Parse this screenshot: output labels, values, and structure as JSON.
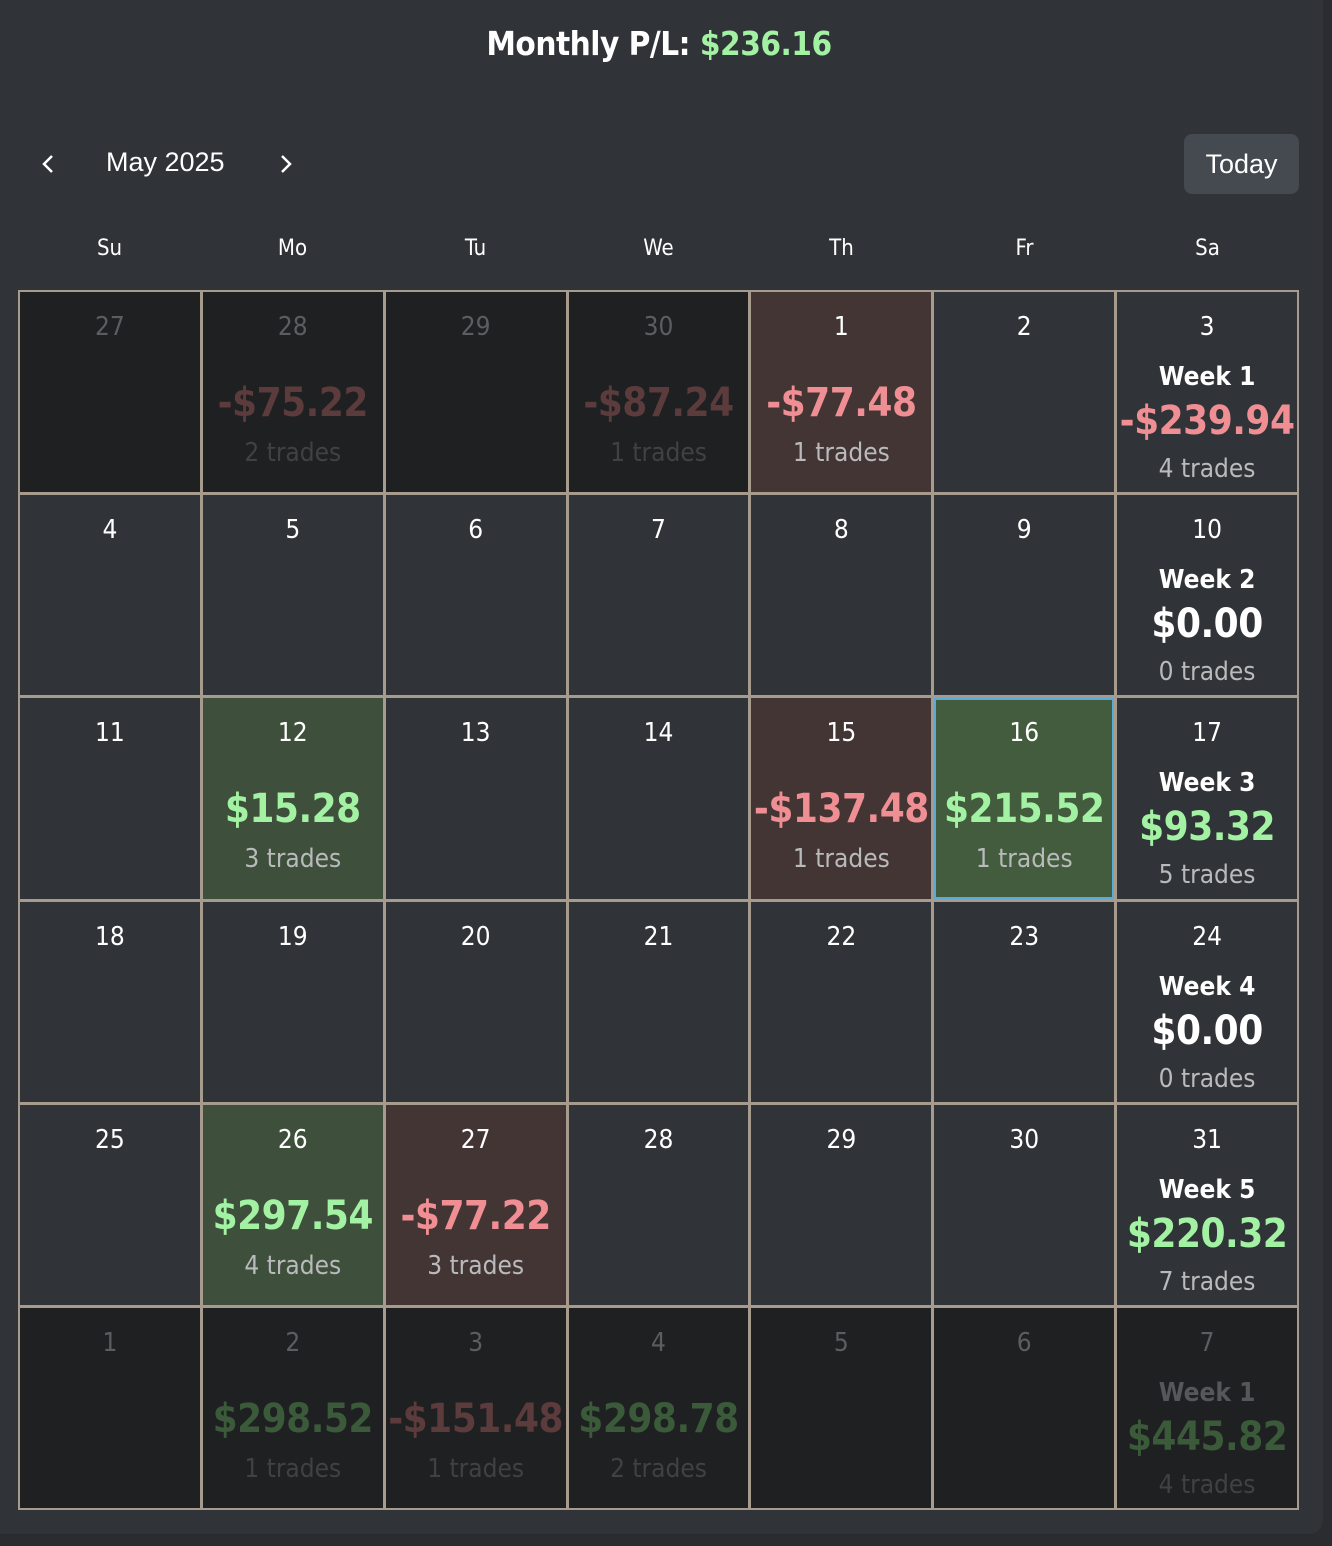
{
  "header": {
    "title_prefix": "Monthly P/L: ",
    "title_value": "$236.16"
  },
  "nav": {
    "month_label": "May 2025",
    "today_label": "Today"
  },
  "weekdays": [
    "Su",
    "Mo",
    "Tu",
    "We",
    "Th",
    "Fr",
    "Sa"
  ],
  "colors": {
    "gain": "#a3f2a3",
    "loss": "#f08f93",
    "selected_border": "#5aa9d6"
  },
  "weeks": [
    [
      {
        "day": "27",
        "out": true,
        "amount": "",
        "trades": ""
      },
      {
        "day": "28",
        "out": true,
        "amount": "-$75.22",
        "trades": "2 trades"
      },
      {
        "day": "29",
        "out": true,
        "amount": "",
        "trades": ""
      },
      {
        "day": "30",
        "out": true,
        "amount": "-$87.24",
        "trades": "1 trades"
      },
      {
        "day": "1",
        "out": false,
        "amount": "-$77.48",
        "trades": "1 trades"
      },
      {
        "day": "2",
        "out": false,
        "amount": "",
        "trades": ""
      },
      {
        "day": "3",
        "out": false,
        "week": "Week 1",
        "amount": "-$239.94",
        "trades": "4 trades"
      }
    ],
    [
      {
        "day": "4",
        "out": false,
        "amount": "",
        "trades": ""
      },
      {
        "day": "5",
        "out": false,
        "amount": "",
        "trades": ""
      },
      {
        "day": "6",
        "out": false,
        "amount": "",
        "trades": ""
      },
      {
        "day": "7",
        "out": false,
        "amount": "",
        "trades": ""
      },
      {
        "day": "8",
        "out": false,
        "amount": "",
        "trades": ""
      },
      {
        "day": "9",
        "out": false,
        "amount": "",
        "trades": ""
      },
      {
        "day": "10",
        "out": false,
        "week": "Week 2",
        "amount": "$0.00",
        "trades": "0 trades"
      }
    ],
    [
      {
        "day": "11",
        "out": false,
        "amount": "",
        "trades": ""
      },
      {
        "day": "12",
        "out": false,
        "amount": "$15.28",
        "trades": "3 trades"
      },
      {
        "day": "13",
        "out": false,
        "amount": "",
        "trades": ""
      },
      {
        "day": "14",
        "out": false,
        "amount": "",
        "trades": ""
      },
      {
        "day": "15",
        "out": false,
        "amount": "-$137.48",
        "trades": "1 trades"
      },
      {
        "day": "16",
        "out": false,
        "selected": true,
        "amount": "$215.52",
        "trades": "1 trades"
      },
      {
        "day": "17",
        "out": false,
        "week": "Week 3",
        "amount": "$93.32",
        "trades": "5 trades"
      }
    ],
    [
      {
        "day": "18",
        "out": false,
        "amount": "",
        "trades": ""
      },
      {
        "day": "19",
        "out": false,
        "amount": "",
        "trades": ""
      },
      {
        "day": "20",
        "out": false,
        "amount": "",
        "trades": ""
      },
      {
        "day": "21",
        "out": false,
        "amount": "",
        "trades": ""
      },
      {
        "day": "22",
        "out": false,
        "amount": "",
        "trades": ""
      },
      {
        "day": "23",
        "out": false,
        "amount": "",
        "trades": ""
      },
      {
        "day": "24",
        "out": false,
        "week": "Week 4",
        "amount": "$0.00",
        "trades": "0 trades"
      }
    ],
    [
      {
        "day": "25",
        "out": false,
        "amount": "",
        "trades": ""
      },
      {
        "day": "26",
        "out": false,
        "amount": "$297.54",
        "trades": "4 trades"
      },
      {
        "day": "27",
        "out": false,
        "amount": "-$77.22",
        "trades": "3 trades"
      },
      {
        "day": "28",
        "out": false,
        "amount": "",
        "trades": ""
      },
      {
        "day": "29",
        "out": false,
        "amount": "",
        "trades": ""
      },
      {
        "day": "30",
        "out": false,
        "amount": "",
        "trades": ""
      },
      {
        "day": "31",
        "out": false,
        "week": "Week 5",
        "amount": "$220.32",
        "trades": "7 trades"
      }
    ],
    [
      {
        "day": "1",
        "out": true,
        "amount": "",
        "trades": ""
      },
      {
        "day": "2",
        "out": true,
        "amount": "$298.52",
        "trades": "1 trades"
      },
      {
        "day": "3",
        "out": true,
        "amount": "-$151.48",
        "trades": "1 trades"
      },
      {
        "day": "4",
        "out": true,
        "amount": "$298.78",
        "trades": "2 trades"
      },
      {
        "day": "5",
        "out": true,
        "amount": "",
        "trades": ""
      },
      {
        "day": "6",
        "out": true,
        "amount": "",
        "trades": ""
      },
      {
        "day": "7",
        "out": true,
        "week": "Week 1",
        "amount": "$445.82",
        "trades": "4 trades"
      }
    ]
  ]
}
